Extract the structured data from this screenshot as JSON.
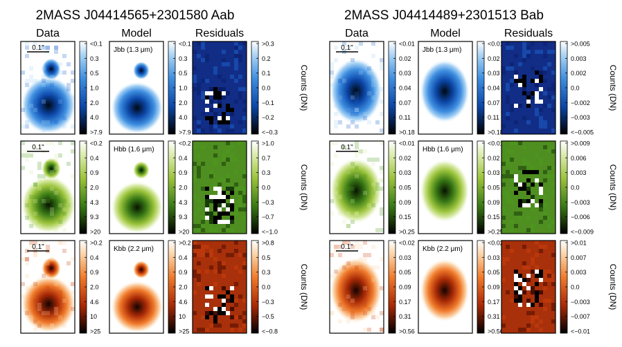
{
  "figure": {
    "panels": [
      {
        "title": "2MASS J04414565+2301580 Aab",
        "column_headers": [
          "Data",
          "Model",
          "Residuals"
        ],
        "rows": [
          {
            "band": "Jbb (1.3 μm)",
            "cmap": "blue",
            "scale_label": "0.1\"",
            "data_ticks": [
              "<0.1",
              "0.3",
              "0.5",
              "1.0",
              "2.0",
              "4.0",
              ">7.9"
            ],
            "resid_ticks": [
              ">0.3",
              "0.2",
              "0.1",
              "0.0",
              "−0.1",
              "−0.2",
              "<−0.3"
            ],
            "resid_label": "Counts (DN)"
          },
          {
            "band": "Hbb (1.6 μm)",
            "cmap": "green",
            "scale_label": "0.1\"",
            "data_ticks": [
              "<0.2",
              "0.4",
              "0.9",
              "2.0",
              "4.3",
              "9.3",
              ">20"
            ],
            "resid_ticks": [
              ">1.0",
              "0.7",
              "0.3",
              "0.0",
              "−0.3",
              "−0.7",
              "<−1.0"
            ],
            "resid_label": "Counts (DN)"
          },
          {
            "band": "Kbb (2.2 μm)",
            "cmap": "orange",
            "scale_label": "0.1\"",
            "data_ticks": [
              ">0.2",
              "0.4",
              "0.9",
              "2.0",
              "4.6",
              "10",
              ">25"
            ],
            "resid_ticks": [
              ">0.8",
              "0.5",
              "0.3",
              "0.0",
              "−0.3",
              "−0.5",
              "<−0.8"
            ],
            "resid_label": "Counts (DN)"
          }
        ]
      },
      {
        "title": "2MASS J04414489+2301513 Bab",
        "column_headers": [
          "Data",
          "Model",
          "Residuals"
        ],
        "rows": [
          {
            "band": "Jbb (1.3 μm)",
            "cmap": "blue",
            "scale_label": "0.1\"",
            "data_ticks": [
              "<0.01",
              "0.02",
              "0.03",
              "0.04",
              "0.07",
              "0.11",
              ">0.18"
            ],
            "resid_ticks": [
              ">0.005",
              "0.003",
              "0.002",
              "0.0",
              "−0.002",
              "−0.003",
              "<−0.005"
            ],
            "resid_label": "Counts (DN)"
          },
          {
            "band": "Hbb (1.6 μm)",
            "cmap": "green",
            "scale_label": "0.1\"",
            "data_ticks": [
              "<0.01",
              "0.02",
              "0.03",
              "0.05",
              "0.09",
              "0.15",
              ">0.25"
            ],
            "resid_ticks": [
              ">0.009",
              "0.006",
              "0.003",
              "0.0",
              "−0.003",
              "−0.006",
              "<−0.009"
            ],
            "resid_label": "Counts (DN)"
          },
          {
            "band": "Kbb (2.2 μm)",
            "cmap": "orange",
            "scale_label": "0.1\"",
            "data_ticks": [
              "<0.02",
              "0.03",
              "0.05",
              "0.09",
              "0.17",
              "0.31",
              ">0.56"
            ],
            "resid_ticks": [
              ">0.01",
              "0.007",
              "0.003",
              "0.0",
              "−0.003",
              "−0.007",
              "<−0.01"
            ],
            "resid_label": "Counts (DN)"
          }
        ]
      }
    ]
  }
}
